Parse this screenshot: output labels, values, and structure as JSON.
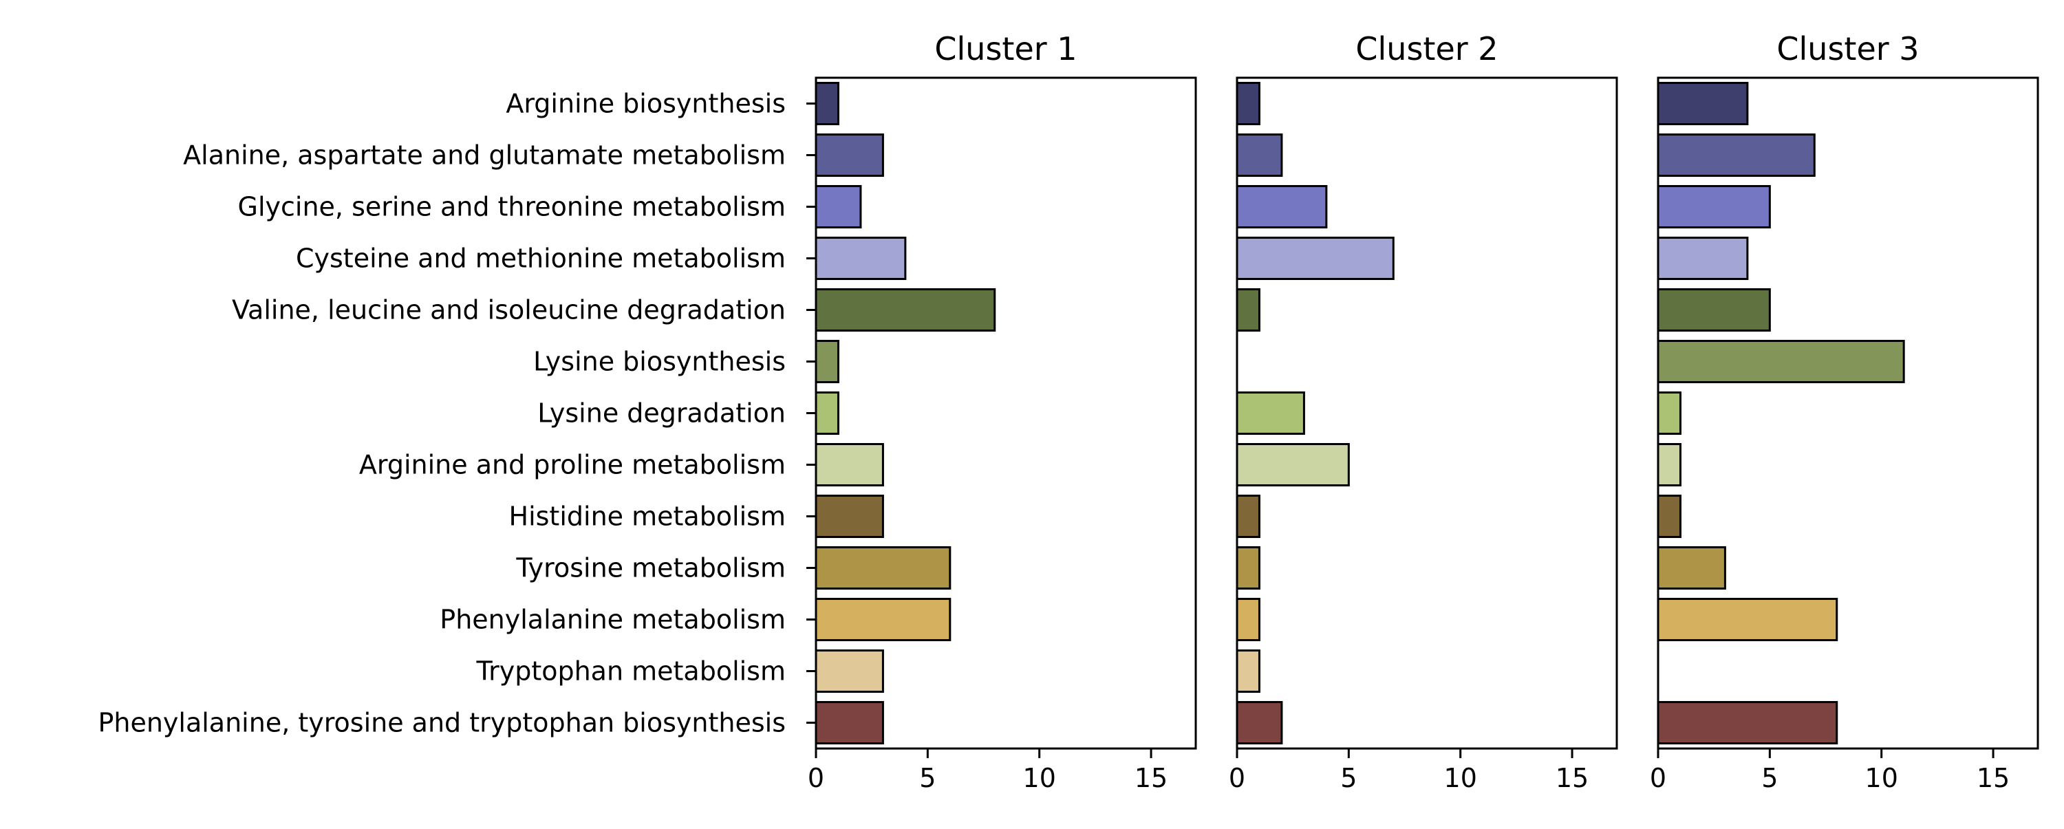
{
  "chart_data": {
    "type": "bar",
    "orientation": "horizontal",
    "categories": [
      "Arginine biosynthesis",
      "Alanine, aspartate and glutamate metabolism",
      "Glycine, serine and threonine metabolism",
      "Cysteine and methionine metabolism",
      "Valine, leucine and isoleucine degradation",
      "Lysine biosynthesis",
      "Lysine degradation",
      "Arginine and proline metabolism",
      "Histidine metabolism",
      "Tyrosine metabolism",
      "Phenylalanine metabolism",
      "Tryptophan metabolism",
      "Phenylalanine, tyrosine and tryptophan biosynthesis"
    ],
    "colors": [
      "#3f3f6e",
      "#5c5e98",
      "#7677c2",
      "#a3a5d4",
      "#5f7240",
      "#84955a",
      "#abc173",
      "#cbd5a3",
      "#806738",
      "#ae9446",
      "#d5b15f",
      "#e0c899",
      "#7d4340"
    ],
    "panels": [
      {
        "title": "Cluster 1",
        "values": [
          1,
          3,
          2,
          4,
          8,
          1,
          1,
          3,
          3,
          6,
          6,
          3,
          3
        ]
      },
      {
        "title": "Cluster 2",
        "values": [
          1,
          2,
          4,
          7,
          1,
          0,
          3,
          5,
          1,
          1,
          1,
          1,
          2
        ]
      },
      {
        "title": "Cluster 3",
        "values": [
          4,
          7,
          5,
          4,
          5,
          11,
          1,
          1,
          1,
          3,
          8,
          0,
          8
        ]
      }
    ],
    "xlim": [
      0,
      17
    ],
    "xticks": [
      0,
      5,
      10,
      15
    ],
    "shared_y": true,
    "grid": false
  }
}
